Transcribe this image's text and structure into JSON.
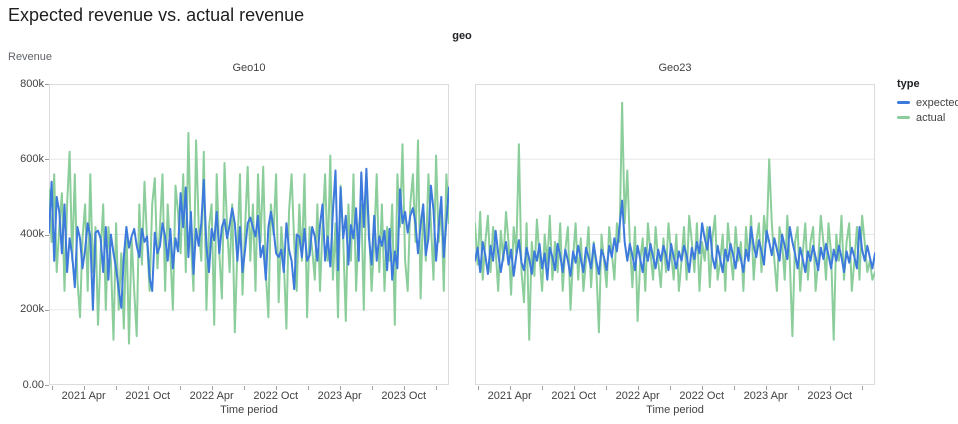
{
  "chart_data": {
    "type": "line",
    "title": "Expected revenue vs. actual revenue",
    "facet_field_label": "geo",
    "grid": true,
    "x_unit": "week",
    "y_axis": {
      "title": "Revenue",
      "unit_k": 1000,
      "max_k": 800,
      "ticks": [
        {
          "label": "800k",
          "value_k": 800
        },
        {
          "label": "600k",
          "value_k": 600
        },
        {
          "label": "400k",
          "value_k": 400
        },
        {
          "label": "200k",
          "value_k": 200
        },
        {
          "label": "0.00",
          "value_k": 0
        }
      ]
    },
    "x_axis": {
      "title": "Time period",
      "domain_start": "2021 Jan",
      "domain_end": "2024 Jan",
      "months_total": 37.5,
      "month_offset": 0.25,
      "major_ticks": [
        {
          "label": "2021 Apr",
          "month": 3
        },
        {
          "label": "2021 Oct",
          "month": 9
        },
        {
          "label": "2022 Apr",
          "month": 15
        },
        {
          "label": "2022 Oct",
          "month": 21
        },
        {
          "label": "2023 Apr",
          "month": 27
        },
        {
          "label": "2023 Oct",
          "month": 33
        }
      ],
      "minor_tick_months": [
        0,
        6,
        12,
        18,
        24,
        30,
        36
      ]
    },
    "legend": {
      "title": "type",
      "entries": [
        {
          "label": "expected",
          "color": "#3C7ADB"
        },
        {
          "label": "actual",
          "color": "#8CCE9B"
        }
      ]
    },
    "facets": [
      {
        "title": "Geo10",
        "series": [
          {
            "name": "expected",
            "color": "#3C7ADB",
            "values_k": [
              405,
              540,
              330,
              500,
              460,
              350,
              480,
              300,
              390,
              345,
              260,
              420,
              390,
              310,
              360,
              430,
              395,
              200,
              405,
              410,
              390,
              300,
              420,
              280,
              400,
              350,
              310,
              255,
              205,
              340,
              420,
              365,
              395,
              415,
              370,
              340,
              415,
              380,
              395,
              285,
              250,
              405,
              350,
              370,
              430,
              395,
              330,
              415,
              310,
              390,
              355,
              510,
              420,
              525,
              340,
              460,
              295,
              415,
              370,
              430,
              545,
              370,
              300,
              415,
              385,
              460,
              350,
              420,
              440,
              390,
              425,
              470,
              430,
              330,
              420,
              300,
              360,
              430,
              445,
              420,
              395,
              450,
              340,
              370,
              280,
              420,
              460,
              415,
              350,
              340,
              360,
              300,
              430,
              360,
              330,
              255,
              400,
              395,
              340,
              415,
              330,
              345,
              420,
              395,
              330,
              425,
              480,
              330,
              395,
              315,
              460,
              570,
              305,
              525,
              390,
              450,
              320,
              425,
              390,
              470,
              330,
              565,
              420,
              575,
              390,
              320,
              450,
              330,
              395,
              370,
              410,
              305,
              415,
              280,
              355,
              310,
              520,
              430,
              460,
              405,
              450,
              470,
              430,
              350,
              425,
              480,
              345,
              390,
              530,
              465,
              330,
              420,
              500,
              340,
              435,
              525
            ]
          },
          {
            "name": "actual",
            "color": "#8CCE9B",
            "values_k": [
              520,
              380,
              560,
              300,
              420,
              510,
              250,
              480,
              620,
              330,
              560,
              280,
              180,
              390,
              480,
              250,
              560,
              300,
              420,
              160,
              350,
              480,
              200,
              420,
              330,
              120,
              430,
              200,
              350,
              150,
              420,
              110,
              390,
              250,
              130,
              480,
              320,
              540,
              380,
              250,
              480,
              550,
              310,
              420,
              560,
              250,
              480,
              350,
              200,
              530,
              460,
              350,
              560,
              300,
              670,
              380,
              250,
              650,
              420,
              330,
              620,
              200,
              420,
              480,
              160,
              560,
              350,
              230,
              590,
              420,
              300,
              480,
              140,
              360,
              560,
              240,
              420,
              580,
              330,
              480,
              250,
              560,
              380,
              580,
              300,
              180,
              480,
              400,
              560,
              220,
              420,
              330,
              150,
              460,
              560,
              380,
              250,
              480,
              330,
              560,
              180,
              420,
              360,
              280,
              480,
              250,
              420,
              560,
              330,
              610,
              280,
              430,
              180,
              530,
              390,
              170,
              480,
              330,
              560,
              250,
              420,
              480,
              200,
              560,
              420,
              250,
              380,
              560,
              300,
              480,
              250,
              420,
              330,
              480,
              160,
              560,
              420,
              640,
              330,
              250,
              480,
              560,
              380,
              650,
              230,
              480,
              330,
              560,
              430,
              280,
              610,
              380,
              480,
              250,
              560,
              430
            ]
          }
        ]
      },
      {
        "title": "Geo23",
        "series": [
          {
            "name": "expected",
            "color": "#3C7ADB",
            "values_k": [
              330,
              365,
              300,
              380,
              345,
              295,
              370,
              330,
              410,
              350,
              300,
              345,
              380,
              320,
              360,
              290,
              345,
              385,
              325,
              305,
              365,
              335,
              295,
              355,
              330,
              375,
              310,
              350,
              280,
              365,
              340,
              305,
              375,
              345,
              300,
              360,
              330,
              290,
              355,
              325,
              370,
              335,
              300,
              365,
              340,
              310,
              375,
              330,
              295,
              360,
              340,
              305,
              370,
              340,
              390,
              355,
              420,
              490,
              380,
              330,
              375,
              345,
              305,
              370,
              335,
              300,
              365,
              330,
              375,
              340,
              310,
              360,
              330,
              370,
              345,
              305,
              375,
              340,
              310,
              355,
              330,
              370,
              345,
              300,
              365,
              335,
              380,
              350,
              430,
              390,
              360,
              420,
              340,
              310,
              370,
              335,
              300,
              360,
              330,
              375,
              345,
              310,
              365,
              335,
              300,
              360,
              330,
              420,
              370,
              340,
              385,
              355,
              320,
              410,
              380,
              345,
              390,
              360,
              330,
              400,
              370,
              335,
              420,
              380,
              350,
              310,
              365,
              335,
              300,
              355,
              330,
              370,
              340,
              305,
              365,
              335,
              375,
              345,
              310,
              360,
              330,
              370,
              340,
              300,
              355,
              325,
              365,
              340,
              310,
              420,
              360,
              330,
              370,
              340,
              310,
              350
            ]
          },
          {
            "name": "actual",
            "color": "#8CCE9B",
            "values_k": [
              430,
              320,
              460,
              280,
              380,
              450,
              300,
              420,
              360,
              250,
              410,
              330,
              460,
              380,
              240,
              420,
              350,
              640,
              300,
              220,
              430,
              120,
              380,
              290,
              440,
              340,
              250,
              400,
              320,
              450,
              280,
              380,
              300,
              430,
              250,
              360,
              420,
              200,
              340,
              430,
              280,
              390,
              250,
              330,
              420,
              260,
              380,
              310,
              140,
              400,
              330,
              260,
              420,
              350,
              280,
              430,
              380,
              750,
              430,
              570,
              380,
              260,
              420,
              170,
              330,
              390,
              250,
              430,
              350,
              280,
              420,
              330,
              260,
              390,
              300,
              430,
              350,
              280,
              400,
              250,
              330,
              420,
              280,
              450,
              380,
              300,
              430,
              250,
              380,
              330,
              420,
              260,
              390,
              450,
              280,
              330,
              400,
              250,
              430,
              350,
              280,
              420,
              330,
              380,
              250,
              420,
              330,
              450,
              280,
              380,
              430,
              300,
              450,
              380,
              600,
              430,
              330,
              250,
              420,
              380,
              280,
              450,
              330,
              130,
              380,
              420,
              250,
              350,
              430,
              280,
              380,
              420,
              250,
              330,
              450,
              380,
              280,
              430,
              350,
              120,
              400,
              330,
              450,
              280,
              380,
              430,
              250,
              330,
              420,
              280,
              450,
              380,
              300,
              330,
              280,
              300
            ]
          }
        ]
      }
    ]
  }
}
